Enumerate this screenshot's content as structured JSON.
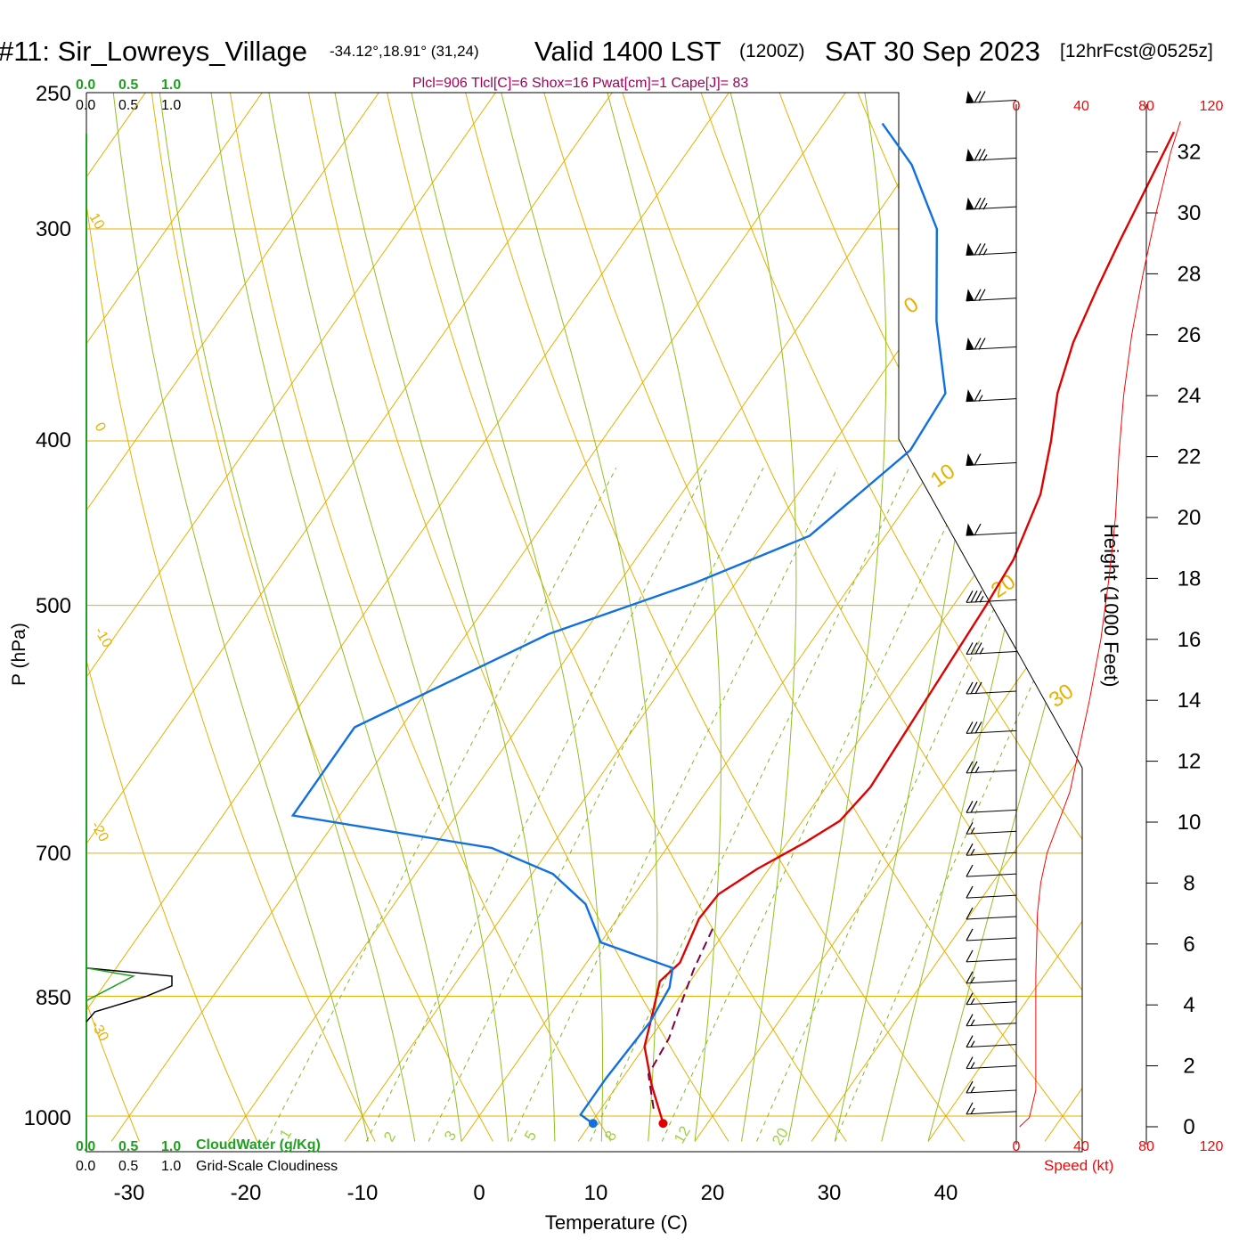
{
  "header": {
    "station": "#11: Sir_Lowreys_Village",
    "coords": "-34.12°,18.91° (31,24)",
    "valid": "Valid 1400 LST",
    "utc": "(1200Z)",
    "date": "SAT 30 Sep 2023",
    "forecast": "[12hrFcst@0525z]"
  },
  "indices": "Plcl=906 Tlcl[C]=6 Shox=16 Pwat[cm]=1 Cape[J]= 83",
  "colors": {
    "temperature": "#e00000",
    "dewpoint": "#1070e0",
    "parcel": "#800040",
    "isotherm": "#e8b000",
    "dry_adiabat": "#90c020",
    "moist_adiabat": "#a0d040",
    "mixing_ratio": "#80b820",
    "cloud_water": "#20a020",
    "cloudiness": "#000000",
    "wind_speed": "#ff0000",
    "indices_text": "#a0005a"
  },
  "legends": {
    "cloudwater_ticks": [
      "0.0",
      "0.5",
      "1.0"
    ],
    "cloudiness_ticks": [
      "0.0",
      "0.5",
      "1.0"
    ],
    "cloudwater_label": "CloudWater (g/Kg)",
    "cloudiness_label": "Grid-Scale Cloudiness"
  },
  "chart_data": {
    "type": "line",
    "subtype": "skew-t log-p sounding",
    "xlabel": "Temperature (C)",
    "ylabel": "P (hPa)",
    "xticks": [
      -30,
      -20,
      -10,
      0,
      10,
      20,
      30,
      40
    ],
    "yticks": [
      250,
      300,
      400,
      500,
      700,
      850,
      1000
    ],
    "isotherm_labels": [
      "10",
      "0",
      "-10",
      "-20",
      "-30",
      "0",
      "10",
      "20",
      "30"
    ],
    "mixing_ratio_labels": [
      "1",
      "2",
      "3",
      "5",
      "8",
      "12",
      "20"
    ],
    "series": [
      {
        "key": "temperature",
        "points": [
          [
            16.2,
            1010
          ],
          [
            13,
            960
          ],
          [
            10,
            910
          ],
          [
            8.7,
            870
          ],
          [
            7.4,
            833
          ],
          [
            8,
            812
          ],
          [
            7,
            765
          ],
          [
            7.2,
            740
          ],
          [
            9,
            715
          ],
          [
            11.5,
            690
          ],
          [
            13.2,
            670
          ],
          [
            13.8,
            640
          ],
          [
            13.4,
            580
          ],
          [
            12.8,
            500
          ],
          [
            12.4,
            470
          ],
          [
            10.8,
            430
          ],
          [
            8.5,
            400
          ],
          [
            6.2,
            375
          ],
          [
            4.5,
            350
          ],
          [
            3.3,
            325
          ],
          [
            2.4,
            305
          ],
          [
            1.4,
            282
          ],
          [
            0.5,
            263
          ]
        ]
      },
      {
        "key": "dewpoint",
        "points": [
          [
            10.2,
            1010
          ],
          [
            9.5,
            1005
          ],
          [
            8.6,
            998
          ],
          [
            8.6,
            950
          ],
          [
            9,
            880
          ],
          [
            8.6,
            840
          ],
          [
            7.7,
            818
          ],
          [
            0,
            790
          ],
          [
            -3.6,
            750
          ],
          [
            -8.2,
            720
          ],
          [
            -15,
            695
          ],
          [
            -34,
            665
          ],
          [
            -34,
            590
          ],
          [
            -23,
            520
          ],
          [
            -13.5,
            485
          ],
          [
            -6.5,
            455
          ],
          [
            -3,
            405
          ],
          [
            -3.4,
            375
          ],
          [
            -8.5,
            340
          ],
          [
            -14,
            300
          ],
          [
            -20,
            275
          ],
          [
            -25,
            260
          ]
        ]
      },
      {
        "key": "parcel",
        "points": [
          [
            14.5,
            990
          ],
          [
            12,
            945
          ],
          [
            11.6,
            900
          ],
          [
            10.6,
            860
          ],
          [
            9.6,
            820
          ],
          [
            8.7,
            772
          ]
        ]
      }
    ],
    "surface_temperature": 16.2,
    "surface_dewpoint": 10.2,
    "cloud_water_profile": [
      [
        0,
        818
      ],
      [
        0.55,
        827
      ],
      [
        0,
        855
      ]
    ],
    "cloudiness_profile": [
      [
        0,
        818
      ],
      [
        1.0,
        827
      ],
      [
        1.0,
        838
      ],
      [
        0.7,
        850
      ],
      [
        0.1,
        868
      ],
      [
        0,
        880
      ]
    ],
    "wind_speed_axis": {
      "label": "Speed (kt)",
      "ticks": [
        "0",
        "40",
        "80",
        "120"
      ],
      "max": 120
    },
    "height_axis": {
      "label": "Height (1000 Feet)",
      "ticks": [
        0,
        2,
        4,
        6,
        8,
        10,
        12,
        14,
        16,
        18,
        20,
        22,
        24,
        26,
        28,
        30,
        32
      ]
    },
    "wind_speed_profile": [
      [
        0,
        2
      ],
      [
        0.3,
        8
      ],
      [
        1.2,
        12
      ],
      [
        2.5,
        12
      ],
      [
        5,
        12
      ],
      [
        7,
        13
      ],
      [
        8,
        15
      ],
      [
        9,
        19
      ],
      [
        10,
        26
      ],
      [
        11,
        33
      ],
      [
        12,
        37
      ],
      [
        14,
        45
      ],
      [
        16,
        52
      ],
      [
        18,
        57
      ],
      [
        20,
        61
      ],
      [
        22,
        63
      ],
      [
        24,
        66
      ],
      [
        26,
        71
      ],
      [
        28,
        78
      ],
      [
        30,
        86
      ],
      [
        32,
        95
      ],
      [
        33,
        101
      ]
    ],
    "wind_barbs": [
      {
        "h": 0.5,
        "flags": 0,
        "full": 1,
        "half": 1
      },
      {
        "h": 1.2,
        "flags": 0,
        "full": 1,
        "half": 1
      },
      {
        "h": 2,
        "flags": 0,
        "full": 1,
        "half": 1
      },
      {
        "h": 2.7,
        "flags": 0,
        "full": 1,
        "half": 1
      },
      {
        "h": 3.4,
        "flags": 0,
        "full": 1,
        "half": 1
      },
      {
        "h": 4.1,
        "flags": 0,
        "full": 1,
        "half": 1
      },
      {
        "h": 4.8,
        "flags": 0,
        "full": 1,
        "half": 1
      },
      {
        "h": 5.5,
        "flags": 0,
        "full": 1,
        "half": 0
      },
      {
        "h": 6.2,
        "flags": 0,
        "full": 1,
        "half": 0
      },
      {
        "h": 6.9,
        "flags": 0,
        "full": 1,
        "half": 0
      },
      {
        "h": 7.6,
        "flags": 0,
        "full": 1,
        "half": 0
      },
      {
        "h": 8.3,
        "flags": 0,
        "full": 1,
        "half": 0
      },
      {
        "h": 9,
        "flags": 0,
        "full": 1,
        "half": 1
      },
      {
        "h": 9.7,
        "flags": 0,
        "full": 1,
        "half": 1
      },
      {
        "h": 10.4,
        "flags": 0,
        "full": 2,
        "half": 0
      },
      {
        "h": 11.7,
        "flags": 0,
        "full": 2,
        "half": 1
      },
      {
        "h": 13,
        "flags": 0,
        "full": 3,
        "half": 0
      },
      {
        "h": 14.3,
        "flags": 0,
        "full": 3,
        "half": 0
      },
      {
        "h": 15.6,
        "flags": 0,
        "full": 3,
        "half": 1
      },
      {
        "h": 17.3,
        "flags": 0,
        "full": 3,
        "half": 1
      },
      {
        "h": 19.5,
        "flags": 1,
        "full": 1,
        "half": 0
      },
      {
        "h": 21.8,
        "flags": 1,
        "full": 1,
        "half": 0
      },
      {
        "h": 23.9,
        "flags": 1,
        "full": 1,
        "half": 1
      },
      {
        "h": 25.6,
        "flags": 1,
        "full": 2,
        "half": 0
      },
      {
        "h": 27.2,
        "flags": 1,
        "full": 2,
        "half": 0
      },
      {
        "h": 28.7,
        "flags": 1,
        "full": 2,
        "half": 1
      },
      {
        "h": 30.2,
        "flags": 1,
        "full": 2,
        "half": 1
      },
      {
        "h": 31.8,
        "flags": 1,
        "full": 2,
        "half": 1
      },
      {
        "h": 33.7,
        "flags": 1,
        "full": 2,
        "half": 0
      }
    ]
  }
}
